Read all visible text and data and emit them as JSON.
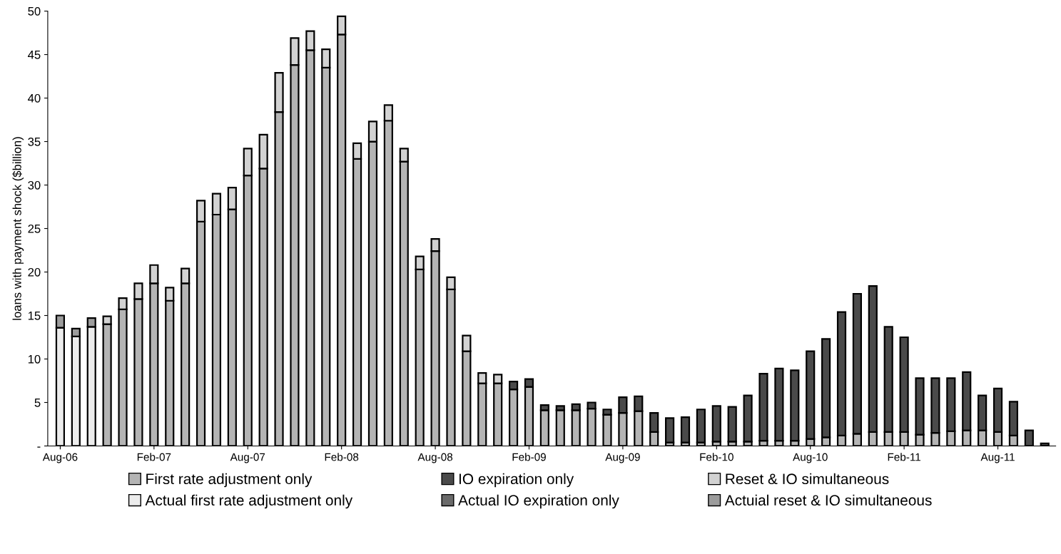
{
  "chart_data": {
    "type": "bar",
    "stacked": true,
    "ylabel": "loans with payment shock ($billion)",
    "categories": [
      "Aug-06",
      null,
      null,
      null,
      null,
      null,
      "Feb-07",
      null,
      null,
      null,
      null,
      null,
      "Aug-07",
      null,
      null,
      null,
      null,
      null,
      "Feb-08",
      null,
      null,
      null,
      null,
      null,
      "Aug-08",
      null,
      null,
      null,
      null,
      null,
      "Feb-09",
      null,
      null,
      null,
      null,
      null,
      "Aug-09",
      null,
      null,
      null,
      null,
      null,
      "Feb-10",
      null,
      null,
      null,
      null,
      null,
      "Aug-10",
      null,
      null,
      null,
      null,
      null,
      "Feb-11",
      null,
      null,
      null,
      null,
      null,
      "Aug-11",
      null,
      null,
      null
    ],
    "series": [
      {
        "name": "First rate adjustment only",
        "color": "#b4b4b4",
        "values": [
          null,
          null,
          null,
          14.0,
          15.7,
          16.9,
          18.7,
          16.7,
          18.7,
          25.8,
          26.6,
          27.2,
          31.1,
          31.9,
          38.4,
          43.8,
          45.5,
          43.5,
          47.3,
          33.0,
          35.0,
          37.4,
          32.7,
          20.3,
          22.4,
          18.0,
          10.9,
          7.2,
          7.2,
          6.5,
          6.8,
          4.1,
          4.1,
          4.1,
          4.3,
          3.6,
          3.8,
          4.0,
          1.6,
          0.4,
          0.4,
          0.4,
          0.5,
          0.5,
          0.5,
          0.6,
          0.6,
          0.6,
          0.8,
          1.0,
          1.2,
          1.4,
          1.6,
          1.6,
          1.6,
          1.3,
          1.5,
          1.7,
          1.8,
          1.8,
          1.6,
          1.2,
          null,
          null
        ]
      },
      {
        "name": "Actual first rate adjustment only",
        "color": "#ececec",
        "values": [
          13.6,
          12.6,
          13.7,
          null,
          null,
          null,
          null,
          null,
          null,
          null,
          null,
          null,
          null,
          null,
          null,
          null,
          null,
          null,
          null,
          null,
          null,
          null,
          null,
          null,
          null,
          null,
          null,
          null,
          null,
          null,
          null,
          null,
          null,
          null,
          null,
          null,
          null,
          null,
          null,
          null,
          null,
          null,
          null,
          null,
          null,
          null,
          null,
          null,
          null,
          null,
          null,
          null,
          null,
          null,
          null,
          null,
          null,
          null,
          null,
          null,
          null,
          null,
          null,
          null
        ]
      },
      {
        "name": "IO expiration only",
        "color": "#4a4a4a",
        "values": [
          null,
          null,
          null,
          null,
          null,
          null,
          null,
          null,
          null,
          null,
          null,
          null,
          null,
          null,
          null,
          null,
          null,
          null,
          null,
          null,
          null,
          null,
          null,
          null,
          null,
          null,
          null,
          null,
          null,
          0.9,
          0.9,
          0.6,
          0.5,
          0.7,
          0.7,
          0.6,
          1.8,
          1.7,
          2.2,
          2.8,
          2.9,
          3.8,
          4.1,
          4.0,
          5.3,
          7.7,
          8.3,
          8.1,
          10.1,
          11.3,
          14.2,
          16.1,
          16.8,
          12.1,
          10.9,
          6.5,
          6.3,
          6.1,
          6.7,
          4.0,
          5.0,
          3.9,
          1.8,
          0.3
        ]
      },
      {
        "name": "Actual IO expiration only",
        "color": "#6a6a6a",
        "values": [
          null,
          null,
          null,
          null,
          null,
          null,
          null,
          null,
          null,
          null,
          null,
          null,
          null,
          null,
          null,
          null,
          null,
          null,
          null,
          null,
          null,
          null,
          null,
          null,
          null,
          null,
          null,
          null,
          null,
          null,
          null,
          null,
          null,
          null,
          null,
          null,
          null,
          null,
          null,
          null,
          null,
          null,
          null,
          null,
          null,
          null,
          null,
          null,
          null,
          null,
          null,
          null,
          null,
          null,
          null,
          null,
          null,
          null,
          null,
          null,
          null,
          null,
          null,
          null
        ]
      },
      {
        "name": "Reset & IO simultaneous",
        "color": "#d2d2d2",
        "values": [
          null,
          null,
          null,
          0.9,
          1.3,
          1.8,
          2.1,
          1.5,
          1.7,
          2.4,
          2.4,
          2.5,
          3.1,
          3.9,
          4.5,
          3.1,
          2.2,
          2.1,
          2.1,
          1.8,
          2.3,
          1.8,
          1.5,
          1.5,
          1.4,
          1.4,
          1.8,
          1.2,
          1.0,
          null,
          null,
          null,
          null,
          null,
          null,
          null,
          null,
          null,
          null,
          null,
          null,
          null,
          null,
          null,
          null,
          null,
          null,
          null,
          null,
          null,
          null,
          null,
          null,
          null,
          null,
          null,
          null,
          null,
          null,
          null,
          null,
          null,
          null,
          null
        ]
      },
      {
        "name": "Actuial reset & IO simultaneous",
        "color": "#9c9c9c",
        "values": [
          1.4,
          0.9,
          1.0,
          null,
          null,
          null,
          null,
          null,
          null,
          null,
          null,
          null,
          null,
          null,
          null,
          null,
          null,
          null,
          null,
          null,
          null,
          null,
          null,
          null,
          null,
          null,
          null,
          null,
          null,
          null,
          null,
          null,
          null,
          null,
          null,
          null,
          null,
          null,
          null,
          null,
          null,
          null,
          null,
          null,
          null,
          null,
          null,
          null,
          null,
          null,
          null,
          null,
          null,
          null,
          null,
          null,
          null,
          null,
          null,
          null,
          null,
          null,
          null,
          null
        ]
      }
    ],
    "ylim": [
      0,
      50
    ],
    "yticks": [
      {
        "value": 0,
        "label": "-"
      },
      5,
      10,
      15,
      20,
      25,
      30,
      35,
      40,
      45,
      50
    ],
    "grid": false,
    "legend": "bottom"
  }
}
